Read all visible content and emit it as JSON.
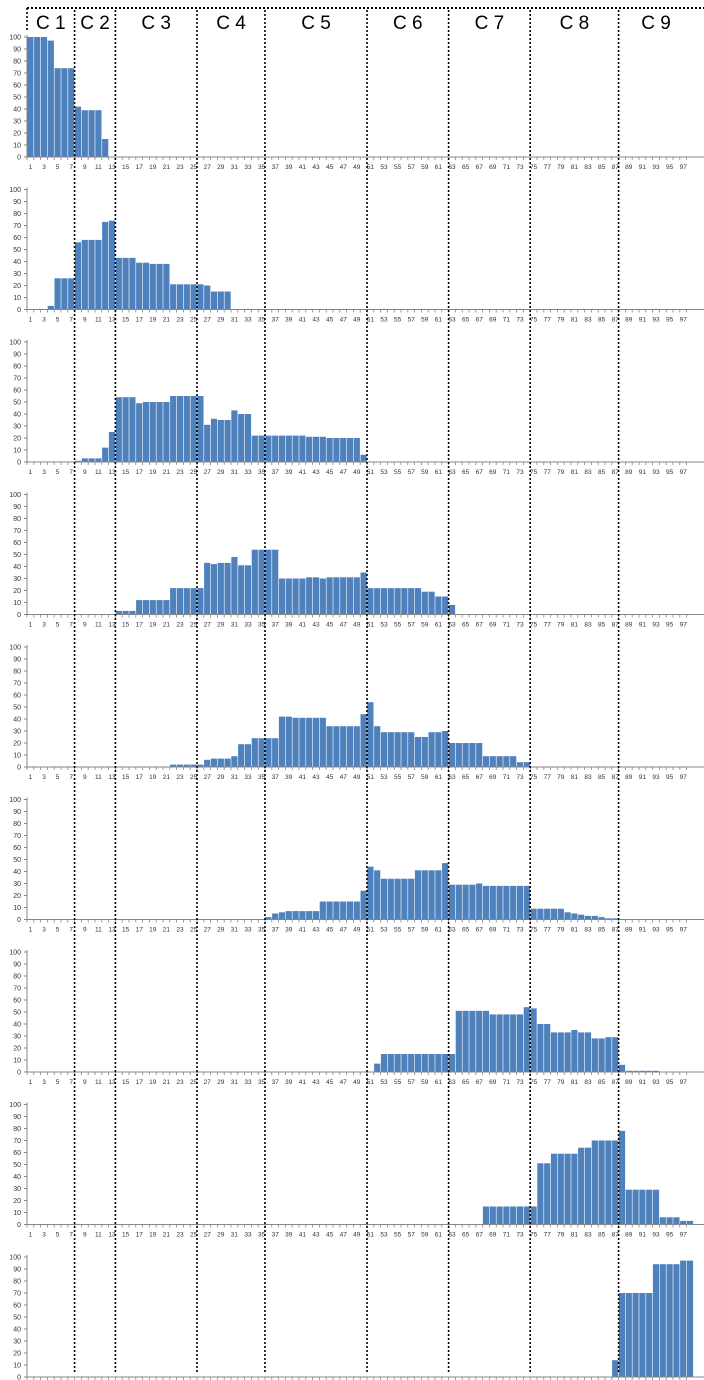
{
  "chart_data": {
    "type": "bar",
    "columns": [
      "C 1",
      "C 2",
      "C 3",
      "C 4",
      "C 5",
      "C 6",
      "C 7",
      "C 8",
      "C 9"
    ],
    "column_boundaries_after_x": [
      7.5,
      13.5,
      25.5,
      35.5,
      50.5,
      62.5,
      74.5,
      87.5
    ],
    "x_range": [
      1,
      98
    ],
    "xtick_labels": [
      "1",
      "3",
      "5",
      "7",
      "9",
      "11",
      "13",
      "15",
      "17",
      "19",
      "21",
      "23",
      "25",
      "27",
      "29",
      "31",
      "33",
      "35",
      "37",
      "39",
      "41",
      "43",
      "45",
      "47",
      "49",
      "51",
      "53",
      "55",
      "57",
      "59",
      "61",
      "63",
      "65",
      "67",
      "69",
      "71",
      "73",
      "75",
      "77",
      "79",
      "81",
      "83",
      "85",
      "87",
      "89",
      "91",
      "93",
      "95",
      "97"
    ],
    "ylim": [
      0,
      100
    ],
    "ytick_labels": [
      "0",
      "10",
      "20",
      "30",
      "40",
      "50",
      "60",
      "70",
      "80",
      "90",
      "100"
    ],
    "grid": false,
    "bar_color": "#4f81bd",
    "panels": [
      {
        "values": [
          100,
          100,
          100,
          97,
          74,
          74,
          74,
          42,
          39,
          39,
          39,
          15,
          0,
          0,
          0,
          0,
          0,
          0,
          0,
          0,
          0,
          0,
          0,
          0,
          0,
          0,
          0,
          0,
          0,
          0,
          0,
          0,
          0,
          0,
          0,
          0,
          0,
          0,
          0,
          0,
          0,
          0,
          0,
          0,
          0,
          0,
          0,
          0,
          0,
          0,
          0,
          0,
          0,
          0,
          0,
          0,
          0,
          0,
          0,
          0,
          0,
          0,
          0,
          0,
          0,
          0,
          0,
          0,
          0,
          0,
          0,
          0,
          0,
          0,
          0,
          0,
          0,
          0,
          0,
          0,
          0,
          0,
          0,
          0,
          0,
          0,
          0,
          0,
          0,
          0,
          0,
          0,
          0,
          0,
          0,
          0,
          0,
          0
        ]
      },
      {
        "values": [
          0,
          0,
          0,
          3,
          26,
          26,
          26,
          56,
          58,
          58,
          58,
          73,
          74,
          43,
          43,
          43,
          39,
          39,
          38,
          38,
          38,
          21,
          21,
          21,
          21,
          21,
          20,
          15,
          15,
          15,
          0,
          0,
          0,
          0,
          0,
          0,
          0,
          0,
          0,
          0,
          0,
          0,
          0,
          0,
          0,
          0,
          0,
          0,
          0,
          0,
          0,
          0,
          0,
          0,
          0,
          0,
          0,
          0,
          0,
          0,
          0,
          0,
          0,
          0,
          0,
          0,
          0,
          0,
          0,
          0,
          0,
          0,
          0,
          0,
          0,
          0,
          0,
          0,
          0,
          0,
          0,
          0,
          0,
          0,
          0,
          0,
          0,
          0,
          0,
          0,
          0,
          0,
          0,
          0,
          0,
          0,
          0,
          0
        ]
      },
      {
        "values": [
          0,
          0,
          0,
          0,
          0,
          0,
          0,
          1,
          3,
          3,
          3,
          12,
          25,
          54,
          54,
          54,
          49,
          50,
          50,
          50,
          50,
          55,
          55,
          55,
          55,
          55,
          31,
          36,
          35,
          35,
          43,
          40,
          40,
          22,
          22,
          22,
          22,
          22,
          22,
          22,
          22,
          21,
          21,
          21,
          20,
          20,
          20,
          20,
          20,
          6,
          0,
          0,
          0,
          0,
          0,
          0,
          0,
          0,
          0,
          0,
          0,
          0,
          0,
          0,
          0,
          0,
          0,
          0,
          0,
          0,
          0,
          0,
          0,
          0,
          0,
          0,
          0,
          0,
          0,
          0,
          0,
          0,
          0,
          0,
          0,
          0,
          0,
          0,
          0,
          0,
          0,
          0,
          0,
          0,
          0,
          0,
          0,
          0
        ]
      },
      {
        "values": [
          0,
          0,
          0,
          0,
          0,
          0,
          0,
          0,
          0,
          0,
          0,
          0,
          0,
          3,
          3,
          3,
          12,
          12,
          12,
          12,
          12,
          22,
          22,
          22,
          22,
          22,
          43,
          42,
          43,
          43,
          48,
          41,
          41,
          54,
          54,
          54,
          54,
          30,
          30,
          30,
          30,
          31,
          31,
          30,
          31,
          31,
          31,
          31,
          31,
          35,
          22,
          22,
          22,
          22,
          22,
          22,
          22,
          22,
          19,
          19,
          15,
          15,
          8,
          0,
          0,
          0,
          0,
          0,
          0,
          0,
          0,
          0,
          0,
          0,
          0,
          0,
          0,
          0,
          0,
          0,
          0,
          0,
          0,
          0,
          0,
          0,
          0,
          0,
          0,
          0,
          0,
          0,
          0,
          0,
          0,
          0,
          0,
          0
        ]
      },
      {
        "values": [
          0,
          0,
          0,
          0,
          0,
          0,
          0,
          0,
          0,
          0,
          0,
          0,
          0,
          0,
          0,
          0,
          0,
          0,
          0,
          0,
          0,
          2,
          2,
          2,
          2,
          2,
          6,
          7,
          7,
          7,
          9,
          19,
          19,
          24,
          24,
          24,
          24,
          42,
          42,
          41,
          41,
          41,
          41,
          41,
          34,
          34,
          34,
          34,
          34,
          44,
          54,
          34,
          29,
          29,
          29,
          29,
          29,
          25,
          25,
          29,
          29,
          30,
          20,
          20,
          20,
          20,
          20,
          9,
          9,
          9,
          9,
          9,
          4,
          4,
          0,
          0,
          0,
          0,
          0,
          0,
          0,
          0,
          0,
          0,
          0,
          0,
          0,
          0,
          0,
          0,
          0,
          0,
          0,
          0,
          0,
          0,
          0,
          0
        ]
      },
      {
        "values": [
          0,
          0,
          0,
          0,
          0,
          0,
          0,
          0,
          0,
          0,
          0,
          0,
          0,
          0,
          0,
          0,
          0,
          0,
          0,
          0,
          0,
          0,
          0,
          0,
          0,
          0,
          0,
          0,
          0,
          0,
          0,
          0,
          0,
          0,
          0,
          2,
          5,
          6,
          7,
          7,
          7,
          7,
          7,
          15,
          15,
          15,
          15,
          15,
          15,
          24,
          44,
          41,
          34,
          34,
          34,
          34,
          34,
          41,
          41,
          41,
          41,
          47,
          29,
          29,
          29,
          29,
          30,
          28,
          28,
          28,
          28,
          28,
          28,
          28,
          9,
          9,
          9,
          9,
          9,
          6,
          5,
          4,
          3,
          3,
          2,
          1,
          1,
          0,
          0,
          0,
          0,
          0,
          0,
          0,
          0,
          0,
          0,
          0
        ]
      },
      {
        "values": [
          0,
          0,
          0,
          0,
          0,
          0,
          0,
          0,
          0,
          0,
          0,
          0,
          0,
          0,
          0,
          0,
          0,
          0,
          0,
          0,
          0,
          0,
          0,
          0,
          0,
          0,
          0,
          0,
          0,
          0,
          0,
          0,
          0,
          0,
          0,
          0,
          0,
          0,
          0,
          0,
          0,
          0,
          0,
          0,
          0,
          0,
          0,
          0,
          0,
          0,
          0,
          7,
          15,
          15,
          15,
          15,
          15,
          15,
          15,
          15,
          15,
          15,
          15,
          51,
          51,
          51,
          51,
          51,
          48,
          48,
          48,
          48,
          48,
          54,
          53,
          40,
          40,
          33,
          33,
          33,
          35,
          33,
          33,
          28,
          28,
          29,
          29,
          6,
          1,
          1,
          1,
          1,
          1,
          0,
          0,
          0,
          0,
          0
        ]
      },
      {
        "values": [
          0,
          0,
          0,
          0,
          0,
          0,
          0,
          0,
          0,
          0,
          0,
          0,
          0,
          0,
          0,
          0,
          0,
          0,
          0,
          0,
          0,
          0,
          0,
          0,
          0,
          0,
          0,
          0,
          0,
          0,
          0,
          0,
          0,
          0,
          0,
          0,
          0,
          0,
          0,
          0,
          0,
          0,
          0,
          0,
          0,
          0,
          0,
          0,
          0,
          0,
          0,
          0,
          0,
          0,
          0,
          0,
          0,
          0,
          0,
          0,
          0,
          0,
          0,
          0,
          0,
          0,
          0,
          15,
          15,
          15,
          15,
          15,
          15,
          15,
          15,
          51,
          51,
          59,
          59,
          59,
          59,
          64,
          64,
          70,
          70,
          70,
          70,
          78,
          29,
          29,
          29,
          29,
          29,
          6,
          6,
          6,
          3,
          3
        ]
      },
      {
        "values": [
          0,
          0,
          0,
          0,
          0,
          0,
          0,
          0,
          0,
          0,
          0,
          0,
          0,
          0,
          0,
          0,
          0,
          0,
          0,
          0,
          0,
          0,
          0,
          0,
          0,
          0,
          0,
          0,
          0,
          0,
          0,
          0,
          0,
          0,
          0,
          0,
          0,
          0,
          0,
          0,
          0,
          0,
          0,
          0,
          0,
          0,
          0,
          0,
          0,
          0,
          0,
          0,
          0,
          0,
          0,
          0,
          0,
          0,
          0,
          0,
          0,
          0,
          0,
          0,
          0,
          0,
          0,
          0,
          0,
          0,
          0,
          0,
          0,
          0,
          0,
          0,
          0,
          0,
          0,
          0,
          0,
          0,
          0,
          0,
          0,
          0,
          14,
          70,
          70,
          70,
          70,
          70,
          94,
          94,
          94,
          94,
          97,
          97
        ]
      }
    ]
  }
}
